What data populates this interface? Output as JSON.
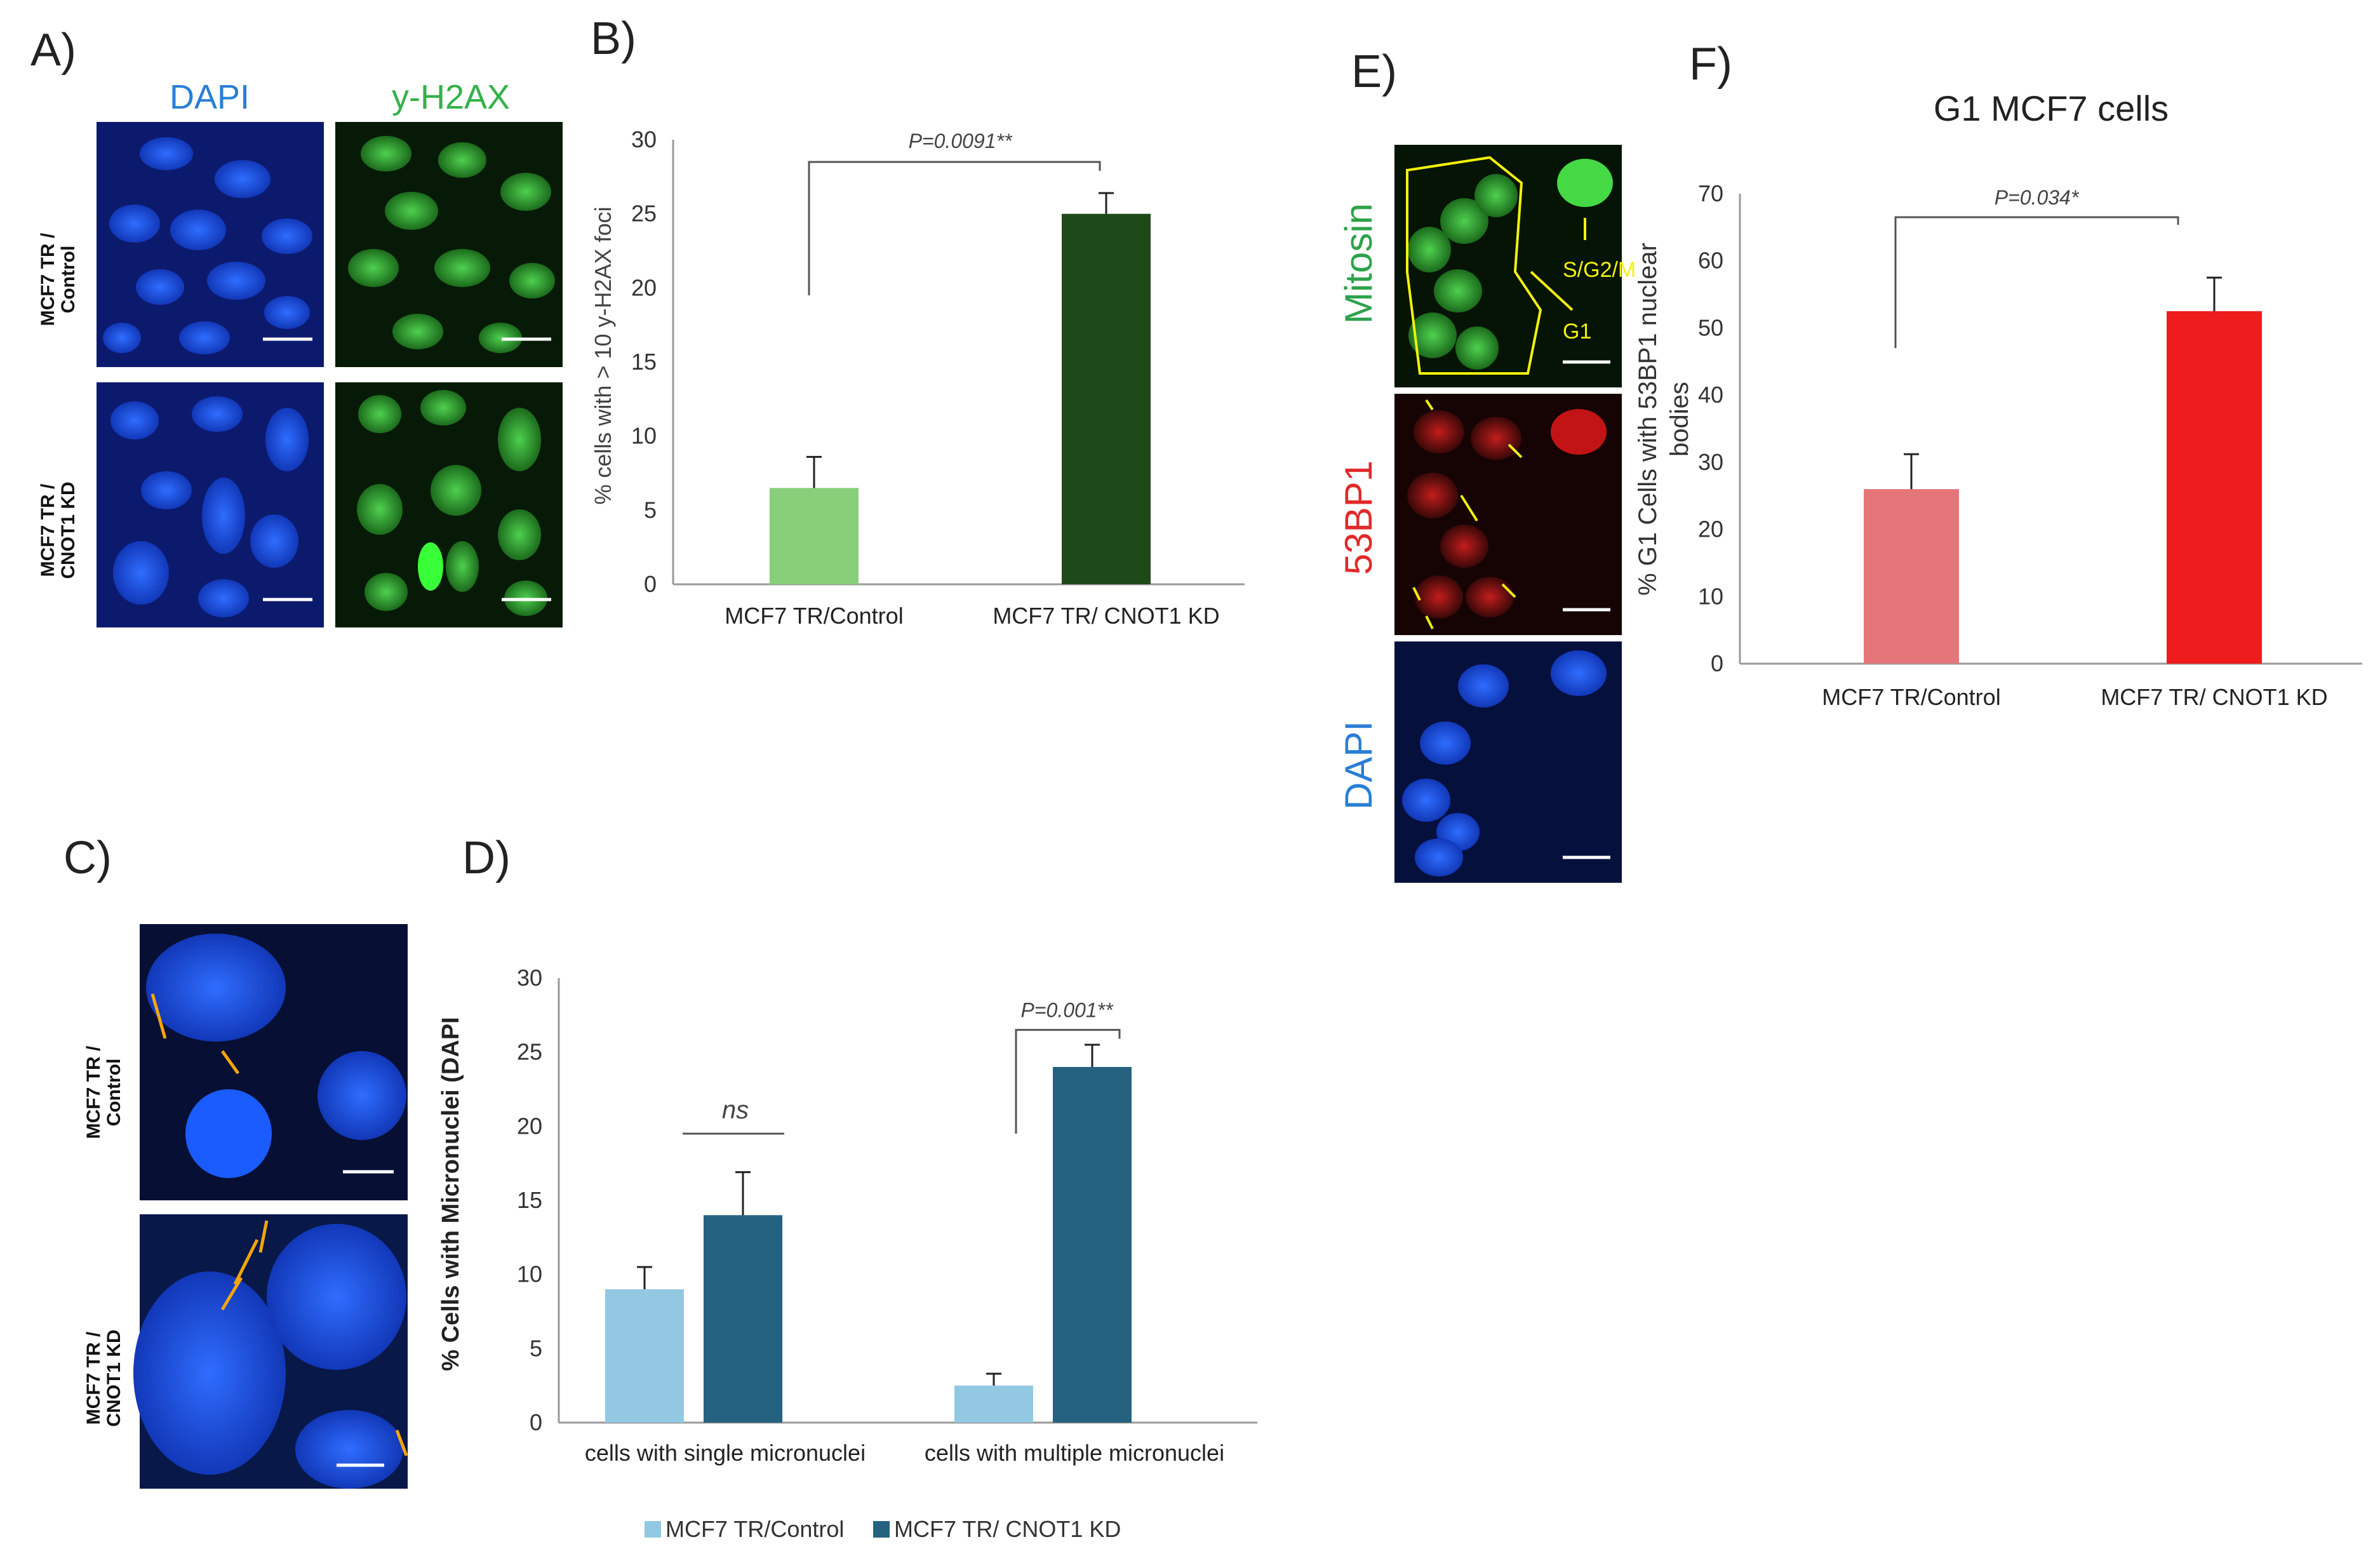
{
  "panels": {
    "a": {
      "letter": "A)",
      "col1": "DAPI",
      "col2": "y-H2AX",
      "row1": "MCF7 TR /\nControl",
      "row2": "MCF7 TR /\nCNOT1 KD"
    },
    "b": {
      "letter": "B)"
    },
    "c": {
      "letter": "C)",
      "row1": "MCF7 TR /\nControl",
      "row2": "MCF7 TR /\nCNOT1 KD"
    },
    "d": {
      "letter": "D)"
    },
    "e": {
      "letter": "E)",
      "row1": "Mitosin",
      "row2": "53BP1",
      "row3": "DAPI",
      "annot_sg2m": "S/G2/M",
      "annot_g1": "G1"
    },
    "f": {
      "letter": "F)"
    }
  },
  "colors": {
    "dapi": "#1f57d6",
    "h2ax": "#2e9e3a",
    "red53": "#e0201c",
    "b_control": "#88cf7a",
    "b_kd": "#1e4a1a",
    "d_control": "#93c8e2",
    "d_kd": "#24627f",
    "f_control": "#e4767a",
    "f_kd": "#ee1c1c"
  },
  "chart_data": [
    {
      "id": "B",
      "type": "bar",
      "title": "",
      "categories": [
        "MCF7 TR/Control",
        "MCF7 TR/ CNOT1 KD"
      ],
      "values": [
        6.5,
        25
      ],
      "errors": [
        2.1,
        1.4
      ],
      "ylabel": "% cells with > 10 y-H2AX foci",
      "xlabel": "",
      "ylim": [
        0,
        30
      ],
      "yticks": [
        "0",
        "5",
        "10",
        "15",
        "20",
        "25",
        "30"
      ],
      "annotation": "P=0.0091**"
    },
    {
      "id": "D",
      "type": "bar",
      "title": "",
      "categories": [
        "cells with single micronuclei",
        "cells with multiple micronuclei"
      ],
      "series": [
        {
          "name": "MCF7 TR/Control",
          "values": [
            9,
            2.5
          ],
          "errors": [
            1.5,
            0.8
          ]
        },
        {
          "name": "MCF7 TR/ CNOT1 KD",
          "values": [
            14,
            24
          ],
          "errors": [
            2.9,
            1.5
          ]
        }
      ],
      "ylabel": "% Cells with Micronuclei (DAPI",
      "xlabel": "",
      "ylim": [
        0,
        30
      ],
      "yticks": [
        "0",
        "5",
        "10",
        "15",
        "20",
        "25",
        "30"
      ],
      "annotations": [
        "ns",
        "P=0.001**"
      ],
      "legend": "bottom"
    },
    {
      "id": "F",
      "type": "bar",
      "title": "G1 MCF7 cells",
      "categories": [
        "MCF7 TR/Control",
        "MCF7 TR/ CNOT1 KD"
      ],
      "values": [
        26,
        52.5
      ],
      "errors": [
        5.2,
        5
      ],
      "ylabel": "% G1 Cells with 53BP1 nuclear bodies",
      "ylabel_lines": [
        "% G1 Cells with 53BP1 nuclear",
        "bodies"
      ],
      "xlabel": "",
      "ylim": [
        0,
        70
      ],
      "yticks": [
        "0",
        "10",
        "20",
        "30",
        "40",
        "50",
        "60",
        "70"
      ],
      "annotation": "P=0.034*"
    }
  ]
}
